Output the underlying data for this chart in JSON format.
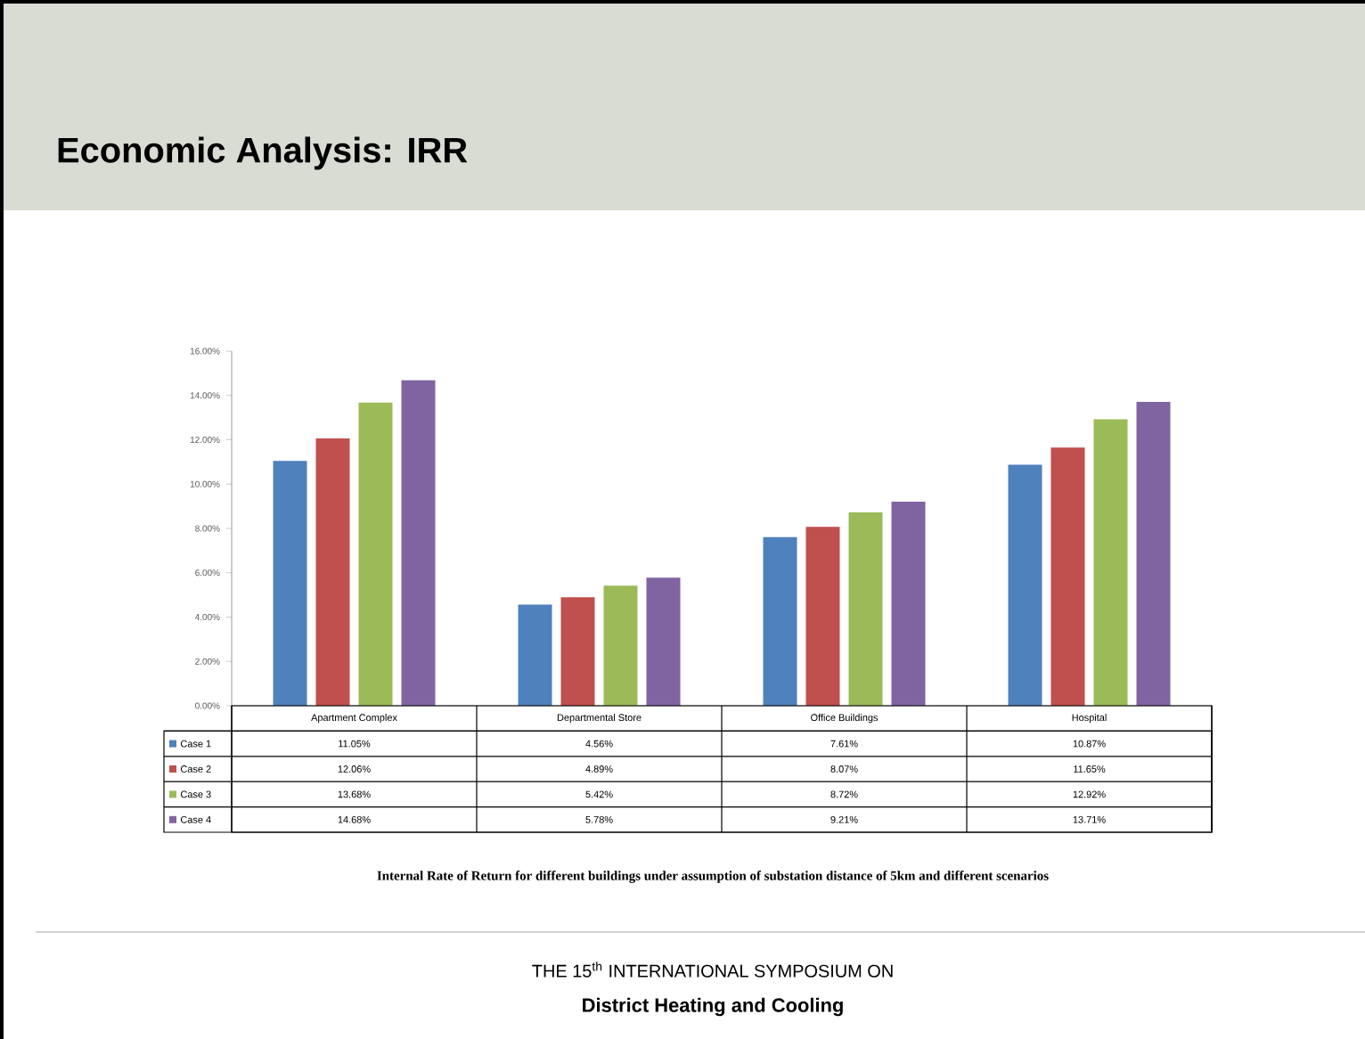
{
  "chart_data": {
    "type": "bar",
    "title": "Economic Analysis: IRR",
    "categories": [
      "Apartment Complex",
      "Departmental Store",
      "Office Buildings",
      "Hospital"
    ],
    "series": [
      {
        "name": "Case 1",
        "color": "#4f81bd",
        "values": [
          11.05,
          4.56,
          7.61,
          10.87
        ],
        "value_labels": [
          "11.05%",
          "4.56%",
          "7.61%",
          "10.87%"
        ]
      },
      {
        "name": "Case 2",
        "color": "#c0504d",
        "values": [
          12.06,
          4.89,
          8.07,
          11.65
        ],
        "value_labels": [
          "12.06%",
          "4.89%",
          "8.07%",
          "11.65%"
        ]
      },
      {
        "name": "Case 3",
        "color": "#9bbb59",
        "values": [
          13.68,
          5.42,
          8.72,
          12.92
        ],
        "value_labels": [
          "13.68%",
          "5.42%",
          "8.72%",
          "12.92%"
        ]
      },
      {
        "name": "Case 4",
        "color": "#8064a2",
        "values": [
          14.68,
          5.78,
          9.21,
          13.71
        ],
        "value_labels": [
          "14.68%",
          "5.78%",
          "9.21%",
          "13.71%"
        ]
      }
    ],
    "ylim": [
      0,
      16
    ],
    "yticks": [
      {
        "value": 0,
        "label": "0.00%"
      },
      {
        "value": 2,
        "label": "2.00%"
      },
      {
        "value": 4,
        "label": "4.00%"
      },
      {
        "value": 6,
        "label": "6.00%"
      },
      {
        "value": 8,
        "label": "8.00%"
      },
      {
        "value": 10,
        "label": "10.00%"
      },
      {
        "value": 12,
        "label": "12.00%"
      },
      {
        "value": 14,
        "label": "14.00%"
      },
      {
        "value": 16,
        "label": "16.00%"
      }
    ],
    "legend": "bottom left",
    "annotations": [
      "Internal Rate of Return for different buildings under assumption of substation distance of 5km and different scenarios",
      "THE 15$^{th}$ INTERNATIONAL SYMPOSIUM ON",
      "**District Heating and Cooling**"
    ]
  }
}
